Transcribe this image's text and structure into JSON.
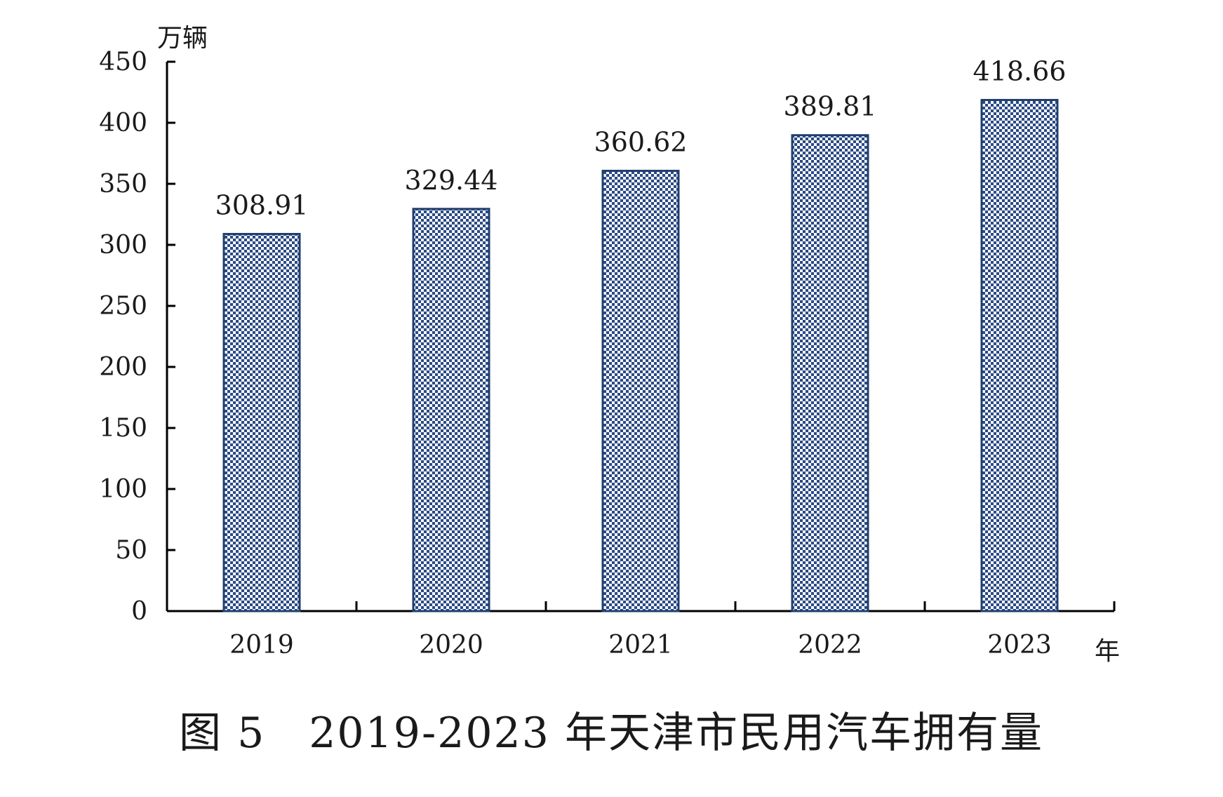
{
  "chart_data": {
    "type": "bar",
    "categories": [
      "2019",
      "2020",
      "2021",
      "2022",
      "2023"
    ],
    "values": [
      308.91,
      329.44,
      360.62,
      389.81,
      418.66
    ],
    "value_labels": [
      "308.91",
      "329.44",
      "360.62",
      "389.81",
      "418.66"
    ],
    "title": "图 5　2019-2023 年天津市民用汽车拥有量",
    "ylabel": "万辆",
    "xlabel": "年",
    "ylim": [
      0,
      450
    ],
    "yticks": [
      0,
      50,
      100,
      150,
      200,
      250,
      300,
      350,
      400,
      450
    ],
    "grid": false,
    "legend": "none",
    "bar_fill_pattern": "blue-white checker",
    "colors": {
      "bar_edge": "#1f3f6e",
      "bar_dots": "#2a4a86",
      "axis": "#000000"
    }
  }
}
